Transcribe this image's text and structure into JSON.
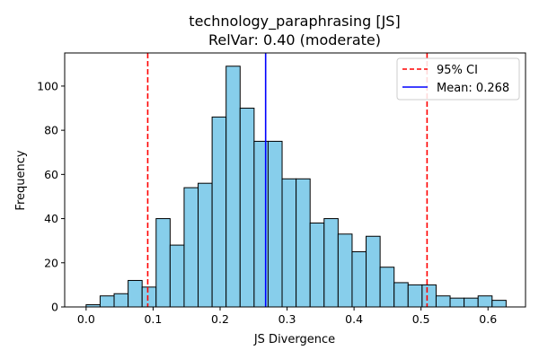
{
  "chart_data": {
    "type": "bar",
    "title": "technology_paraphrasing [JS]",
    "subtitle": "RelVar: 0.40 (moderate)",
    "xlabel": "JS Divergence",
    "ylabel": "Frequency",
    "xlim": [
      -0.032,
      0.656
    ],
    "ylim": [
      0,
      115
    ],
    "bin_start": 0.0,
    "bin_width": 0.0209,
    "values": [
      1,
      5,
      6,
      12,
      9,
      40,
      28,
      54,
      56,
      86,
      109,
      90,
      75,
      75,
      58,
      58,
      38,
      40,
      33,
      25,
      32,
      18,
      11,
      10,
      10,
      5,
      4,
      4,
      5,
      3
    ],
    "bar_color": "#87ceeb",
    "x_ticks": [
      0.0,
      0.1,
      0.2,
      0.3,
      0.4,
      0.5,
      0.6
    ],
    "x_tick_labels": [
      "0.0",
      "0.1",
      "0.2",
      "0.3",
      "0.4",
      "0.5",
      "0.6"
    ],
    "y_ticks": [
      0,
      20,
      40,
      60,
      80,
      100
    ],
    "y_tick_labels": [
      "0",
      "20",
      "40",
      "60",
      "80",
      "100"
    ],
    "ci_lines": [
      0.092,
      0.509
    ],
    "mean_line": 0.268,
    "ci_color": "#ff0000",
    "mean_color": "#0000ff",
    "legend": {
      "position": "top-right",
      "entries": [
        {
          "label": "95% CI",
          "style": "dashed",
          "color": "#ff0000"
        },
        {
          "label": "Mean: 0.268",
          "style": "solid",
          "color": "#0000ff"
        }
      ]
    }
  }
}
